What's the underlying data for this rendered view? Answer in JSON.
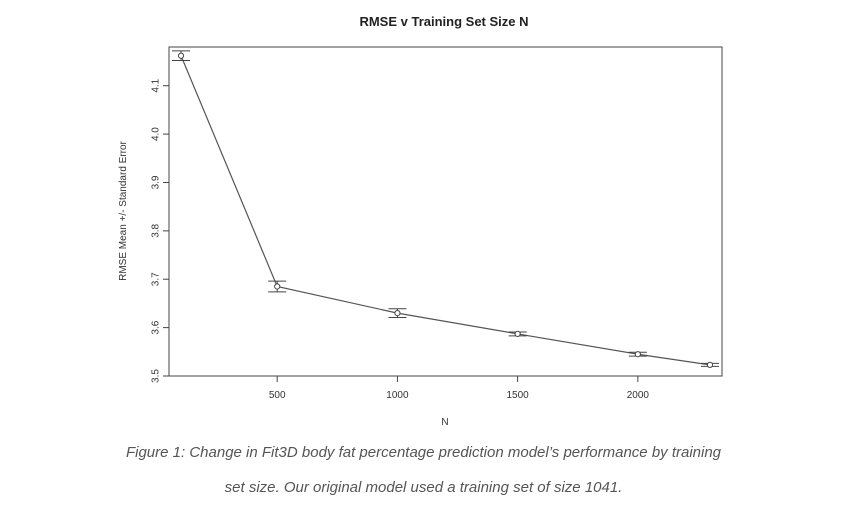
{
  "chart_data": {
    "type": "line",
    "title": "RMSE v Training Set Size N",
    "xlabel": "N",
    "ylabel": "RMSE Mean +/- Standard Error",
    "xlim": [
      50,
      2350
    ],
    "ylim": [
      3.5,
      4.18
    ],
    "xticks": [
      500,
      1000,
      1500,
      2000
    ],
    "yticks": [
      3.5,
      3.6,
      3.7,
      3.8,
      3.9,
      4.0,
      4.1
    ],
    "xtick_labels": [
      "500",
      "1000",
      "1500",
      "2000"
    ],
    "ytick_labels": [
      "3.5",
      "3.6",
      "3.7",
      "3.8",
      "3.9",
      "4.0",
      "4.1"
    ],
    "series": [
      {
        "x": [
          100,
          500,
          1000,
          1500,
          2000,
          2300
        ],
        "y": [
          4.162,
          3.685,
          3.63,
          3.587,
          3.545,
          3.523
        ],
        "error": [
          0.01,
          0.011,
          0.009,
          0.004,
          0.004,
          0.003
        ]
      }
    ],
    "grid": false
  },
  "caption": {
    "line1": "Figure 1: Change in Fit3D body fat percentage prediction model’s performance by training",
    "line2": "set size. Our original model used a training set of size 1041."
  }
}
